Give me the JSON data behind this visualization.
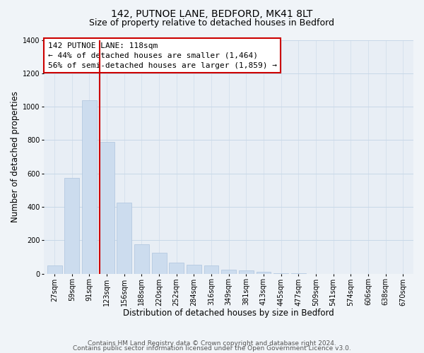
{
  "title": "142, PUTNOE LANE, BEDFORD, MK41 8LT",
  "subtitle": "Size of property relative to detached houses in Bedford",
  "xlabel": "Distribution of detached houses by size in Bedford",
  "ylabel": "Number of detached properties",
  "categories": [
    "27sqm",
    "59sqm",
    "91sqm",
    "123sqm",
    "156sqm",
    "188sqm",
    "220sqm",
    "252sqm",
    "284sqm",
    "316sqm",
    "349sqm",
    "381sqm",
    "413sqm",
    "445sqm",
    "477sqm",
    "509sqm",
    "541sqm",
    "574sqm",
    "606sqm",
    "638sqm",
    "670sqm"
  ],
  "values": [
    48,
    575,
    1040,
    790,
    425,
    178,
    125,
    65,
    55,
    50,
    25,
    20,
    10,
    5,
    2,
    0,
    0,
    0,
    0,
    0,
    0
  ],
  "bar_color": "#ccdcee",
  "bar_edge_color": "#adc4de",
  "vline_color": "#cc0000",
  "vline_x_index": 2.575,
  "annotation_text": "142 PUTNOE LANE: 118sqm\n← 44% of detached houses are smaller (1,464)\n56% of semi-detached houses are larger (1,859) →",
  "annotation_box_color": "#ffffff",
  "annotation_box_edge": "#cc0000",
  "ylim": [
    0,
    1400
  ],
  "yticks": [
    0,
    200,
    400,
    600,
    800,
    1000,
    1200,
    1400
  ],
  "footer_line1": "Contains HM Land Registry data © Crown copyright and database right 2024.",
  "footer_line2": "Contains public sector information licensed under the Open Government Licence v3.0.",
  "bg_color": "#f0f4f8",
  "plot_bg_color": "#e8eef5",
  "title_fontsize": 10,
  "subtitle_fontsize": 9,
  "axis_label_fontsize": 8.5,
  "tick_fontsize": 7,
  "annotation_fontsize": 8,
  "footer_fontsize": 6.5
}
